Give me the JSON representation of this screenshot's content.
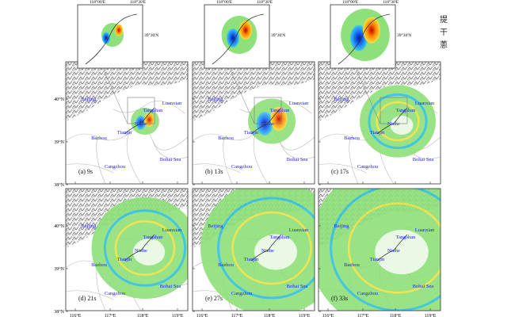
{
  "figure": {
    "panels": [
      {
        "label": "(a) 9s",
        "wave_extent": 0.12,
        "inset": true
      },
      {
        "label": "(b) 13s",
        "wave_extent": 0.2,
        "inset": true
      },
      {
        "label": "(c) 17s",
        "wave_extent": 0.32,
        "inset": true
      },
      {
        "label": "(d) 21s",
        "wave_extent": 0.45,
        "inset": false
      },
      {
        "label": "(e) 27s",
        "wave_extent": 0.6,
        "inset": false
      },
      {
        "label": "(f) 33s",
        "wave_extent": 0.75,
        "inset": false
      }
    ],
    "cities": [
      "Beijing",
      "Luanxian",
      "Tangshan",
      "Ninhe",
      "Tianjin",
      "Bazhou",
      "Cangzhou",
      "Bohai Sea"
    ],
    "x_ticks": [
      "116°E",
      "117°E",
      "118°E",
      "119°E"
    ],
    "y_ticks": [
      "40°N",
      "39°N",
      "38°N"
    ],
    "inset_x_ticks": [
      "118°00'E",
      "118°30'E"
    ],
    "inset_y_tick": "39°30'N",
    "side_text": [
      "提",
      "干",
      "蔥"
    ],
    "colors": {
      "city_label": "#1a1aff",
      "relief": "#555555",
      "boundary": "#b8b8b8",
      "positive": "#e03010",
      "negative": "#0030c0",
      "neutral": "#8ee07a"
    }
  }
}
